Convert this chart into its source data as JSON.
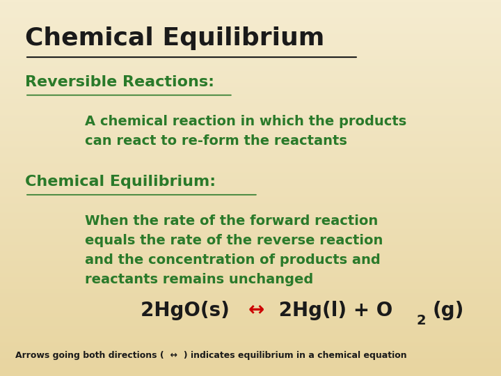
{
  "bg_color_top": "#f5ecd0",
  "bg_color_bottom": "#e8d5a0",
  "title": "Chemical Equilibrium",
  "title_color": "#1a1a1a",
  "heading1": "Reversible Reactions:",
  "heading1_color": "#2a7a2a",
  "body1": "A chemical reaction in which the products\ncan react to re-form the reactants",
  "body1_color": "#2a7a2a",
  "heading2": "Chemical Equilibrium:",
  "heading2_color": "#2a7a2a",
  "body2": "When the rate of the forward reaction\nequals the rate of the reverse reaction\nand the concentration of products and\nreactants remains unchanged",
  "body2_color": "#2a7a2a",
  "equation_left": "2HgO(s) ",
  "equation_arrow": "↔",
  "equation_arrow_color": "#cc0000",
  "equation_right_1": " 2Hg(l) + O",
  "equation_subscript": "2",
  "equation_right_2": "(g)",
  "equation_color": "#1a1a1a",
  "footnote_color": "#1a1a1a",
  "footnote": "Arrows going both directions (  ↔  ) indicates equilibrium in a chemical equation"
}
